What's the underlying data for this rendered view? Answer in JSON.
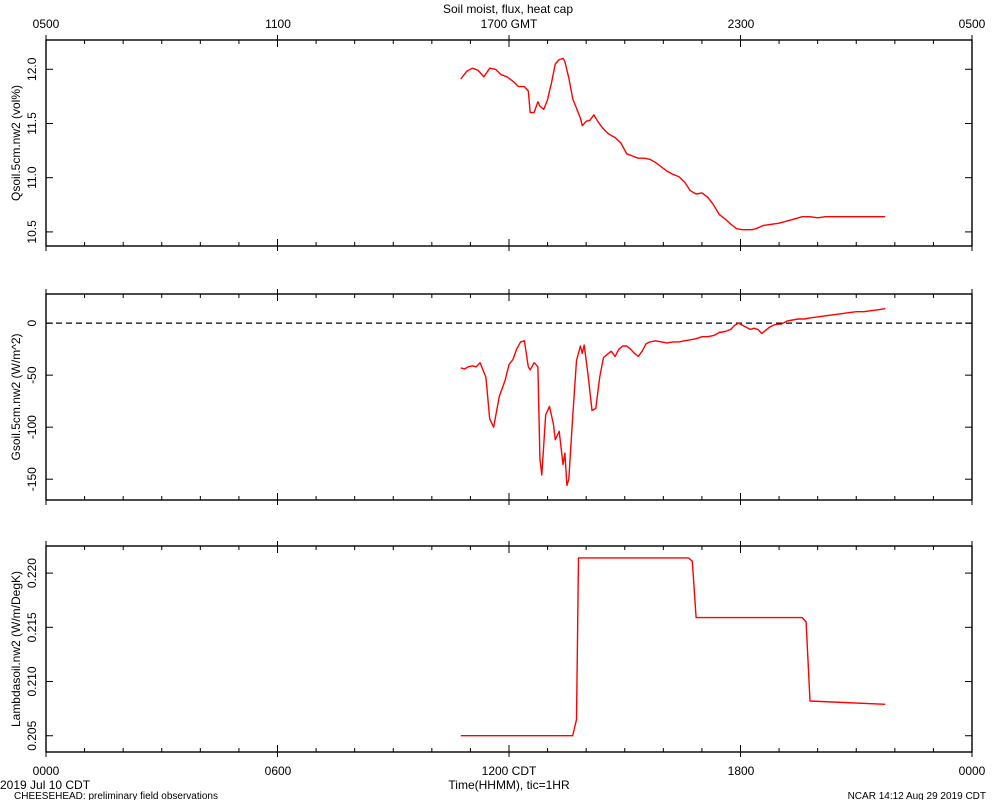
{
  "chart_data": {
    "type": "line",
    "title": "Soil moist, flux, heat cap",
    "series_color": "#ff0000",
    "top_axis": {
      "label": "1700 GMT",
      "ticks": [
        "0500",
        "1100",
        "1700 GMT",
        "2300",
        "0500"
      ]
    },
    "bottom_axis": {
      "ticks": [
        "0000",
        "0600",
        "1200 CDT",
        "1800",
        "0000"
      ],
      "xlabel": "Time(HHMM), tic=1HR",
      "xlim_hours": [
        0,
        24
      ]
    },
    "date_label": "2019 Jul 10 CDT",
    "footer_left": "CHEESEHEAD: preliminary field observations",
    "footer_right": "NCAR 14:12 Aug 29 2019 CDT",
    "panels": [
      {
        "ylabel": "Qsoil.5cm.nw2 (vol%)",
        "ylim": [
          10.37,
          12.27
        ],
        "yticks": [
          10.5,
          11.0,
          11.5,
          12.0
        ],
        "ytick_labels": [
          "10.5",
          "11.0",
          "11.5",
          "12.0"
        ],
        "zero_line": false,
        "x": [
          10.75,
          10.9,
          11.05,
          11.2,
          11.35,
          11.5,
          11.65,
          11.8,
          11.95,
          12.1,
          12.25,
          12.4,
          12.5,
          12.55,
          12.65,
          12.75,
          12.8,
          12.9,
          13.0,
          13.05,
          13.1,
          13.2,
          13.3,
          13.4,
          13.45,
          13.55,
          13.65,
          13.75,
          13.85,
          13.9,
          14.0,
          14.1,
          14.2,
          14.3,
          14.4,
          14.5,
          14.6,
          14.75,
          14.9,
          15.05,
          15.2,
          15.35,
          15.5,
          15.65,
          15.8,
          15.95,
          16.1,
          16.25,
          16.4,
          16.55,
          16.7,
          16.85,
          17.0,
          17.15,
          17.3,
          17.45,
          17.6,
          17.75,
          17.9,
          18.05,
          18.2,
          18.3,
          18.4,
          18.6,
          18.8,
          19.0,
          19.2,
          19.4,
          19.6,
          19.8,
          20.0,
          20.2,
          20.4,
          20.6,
          20.8,
          21.0,
          21.2,
          21.4,
          21.5,
          21.6,
          21.75
        ],
        "y": [
          11.91,
          11.98,
          12.01,
          11.99,
          11.93,
          12.01,
          12.0,
          11.95,
          11.93,
          11.89,
          11.84,
          11.84,
          11.8,
          11.6,
          11.6,
          11.7,
          11.66,
          11.63,
          11.72,
          11.8,
          11.87,
          12.05,
          12.09,
          12.1,
          12.07,
          11.92,
          11.73,
          11.64,
          11.55,
          11.48,
          11.52,
          11.53,
          11.58,
          11.52,
          11.47,
          11.43,
          11.4,
          11.37,
          11.32,
          11.22,
          11.2,
          11.18,
          11.18,
          11.17,
          11.14,
          11.1,
          11.06,
          11.03,
          11.01,
          10.96,
          10.88,
          10.85,
          10.86,
          10.82,
          10.75,
          10.66,
          10.62,
          10.57,
          10.53,
          10.52,
          10.52,
          10.52,
          10.53,
          10.56,
          10.57,
          10.58,
          10.6,
          10.62,
          10.64,
          10.64,
          10.63,
          10.64,
          10.64,
          10.64,
          10.64,
          10.64,
          10.64,
          10.64,
          10.64,
          10.64,
          10.64
        ]
      },
      {
        "ylabel": "Gsoil.5cm.nw2 (W/m^2)",
        "ylim": [
          -170,
          28
        ],
        "yticks": [
          -150,
          -100,
          -50,
          0
        ],
        "ytick_labels": [
          "-150",
          "-100",
          "-50",
          "0"
        ],
        "zero_line": true,
        "x": [
          10.75,
          10.85,
          10.95,
          11.05,
          11.15,
          11.25,
          11.4,
          11.5,
          11.6,
          11.75,
          11.9,
          12.0,
          12.1,
          12.2,
          12.3,
          12.4,
          12.5,
          12.55,
          12.65,
          12.75,
          12.8,
          12.85,
          12.95,
          13.05,
          13.15,
          13.2,
          13.25,
          13.3,
          13.35,
          13.4,
          13.45,
          13.5,
          13.55,
          13.65,
          13.75,
          13.85,
          13.9,
          13.95,
          14.05,
          14.15,
          14.25,
          14.35,
          14.45,
          14.55,
          14.65,
          14.75,
          14.85,
          14.95,
          15.05,
          15.15,
          15.25,
          15.35,
          15.45,
          15.55,
          15.65,
          15.8,
          15.95,
          16.1,
          16.25,
          16.4,
          16.55,
          16.7,
          16.85,
          17.0,
          17.15,
          17.3,
          17.45,
          17.6,
          17.75,
          17.85,
          17.95,
          18.05,
          18.15,
          18.25,
          18.35,
          18.45,
          18.55,
          18.65,
          18.75,
          18.85,
          18.95,
          19.05,
          19.2,
          19.35,
          19.5,
          19.65,
          19.8,
          20.0,
          20.2,
          20.4,
          20.6,
          20.8,
          21.0,
          21.2,
          21.4,
          21.6,
          21.75
        ],
        "y": [
          -43,
          -44,
          -42,
          -41,
          -42,
          -38,
          -52,
          -92,
          -100,
          -70,
          -55,
          -40,
          -35,
          -25,
          -18,
          -17,
          -42,
          -45,
          -38,
          -42,
          -130,
          -146,
          -88,
          -80,
          -97,
          -112,
          -108,
          -104,
          -120,
          -136,
          -125,
          -156,
          -150,
          -90,
          -36,
          -22,
          -29,
          -21,
          -50,
          -84,
          -82,
          -52,
          -33,
          -30,
          -27,
          -32,
          -25,
          -22,
          -22,
          -25,
          -29,
          -32,
          -27,
          -20,
          -18,
          -17,
          -18,
          -19,
          -18,
          -18,
          -17,
          -16,
          -15,
          -13,
          -13,
          -12,
          -9,
          -8,
          -6,
          -2,
          0,
          -2,
          -4,
          -6,
          -5,
          -6,
          -10,
          -7,
          -4,
          -2,
          -1,
          -1,
          2,
          3,
          4,
          4,
          5,
          6,
          7,
          8,
          9,
          10,
          11,
          11,
          12,
          13,
          14
        ]
      },
      {
        "ylabel": "Lambdasoil.nw2 (W/m/DegK)",
        "ylim": [
          0.2035,
          0.2225
        ],
        "yticks": [
          0.205,
          0.21,
          0.215,
          0.22
        ],
        "ytick_labels": [
          "0.205",
          "0.210",
          "0.215",
          "0.220"
        ],
        "zero_line": false,
        "x": [
          10.75,
          13.65,
          13.75,
          13.8,
          16.65,
          16.75,
          16.85,
          19.6,
          19.7,
          19.8,
          21.75
        ],
        "y": [
          0.205,
          0.205,
          0.2065,
          0.2214,
          0.2214,
          0.2211,
          0.2159,
          0.2159,
          0.2155,
          0.2082,
          0.2079
        ]
      }
    ]
  }
}
